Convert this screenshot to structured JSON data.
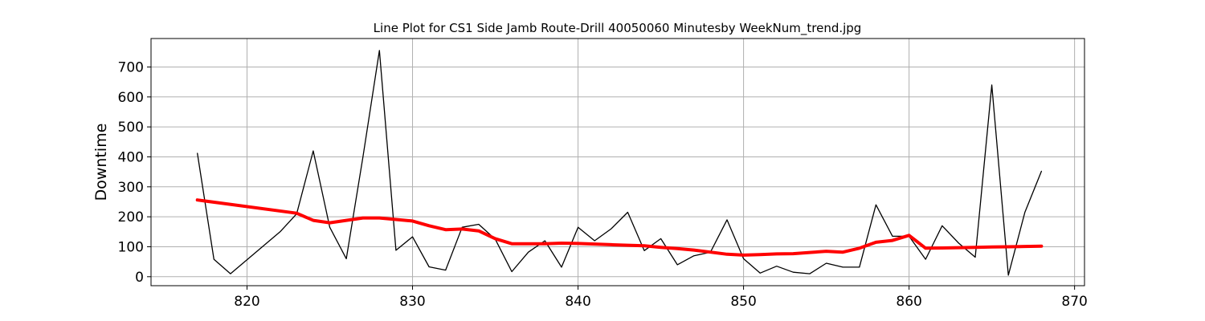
{
  "chart_data": {
    "type": "line",
    "title": "Line Plot for CS1 Side Jamb Route-Drill 40050060 Minutesby WeekNum_trend.jpg",
    "xlabel": "",
    "ylabel": "Downtime",
    "xlim": [
      814.2,
      870.6
    ],
    "ylim": [
      -30,
      795
    ],
    "xticks": [
      820,
      830,
      840,
      850,
      860,
      870
    ],
    "yticks": [
      0,
      100,
      200,
      300,
      400,
      500,
      600,
      700
    ],
    "grid": true,
    "series": [
      {
        "color": "#000000",
        "x": [
          817,
          818,
          819,
          822,
          823,
          824,
          825,
          826,
          827,
          828,
          829,
          830,
          831,
          832,
          833,
          834,
          835,
          836,
          837,
          838,
          839,
          840,
          841,
          842,
          843,
          844,
          845,
          846,
          847,
          848,
          849,
          850,
          851,
          852,
          853,
          854,
          855,
          856,
          857,
          858,
          859,
          860,
          861,
          862,
          863,
          864,
          865,
          866,
          867,
          868
        ],
        "y": [
          412,
          58,
          10,
          150,
          210,
          420,
          165,
          60,
          398,
          755,
          88,
          133,
          33,
          22,
          165,
          175,
          125,
          17,
          82,
          120,
          32,
          165,
          120,
          160,
          215,
          87,
          127,
          40,
          70,
          82,
          190,
          60,
          12,
          35,
          15,
          10,
          45,
          32,
          32,
          240,
          135,
          135,
          58,
          170,
          112,
          65,
          640,
          5,
          215,
          352
        ]
      },
      {
        "color": "#ff0000",
        "x": [
          817,
          823,
          824,
          825,
          826,
          827,
          828,
          829,
          830,
          831,
          832,
          833,
          834,
          835,
          836,
          837,
          838,
          839,
          840,
          841,
          842,
          843,
          844,
          845,
          846,
          847,
          848,
          849,
          850,
          851,
          852,
          853,
          854,
          855,
          856,
          857,
          858,
          859,
          860,
          861,
          862,
          863,
          864,
          865,
          866,
          867,
          868
        ],
        "y": [
          256,
          212,
          188,
          180,
          188,
          196,
          196,
          191,
          186,
          170,
          157,
          159,
          153,
          127,
          110,
          110,
          110,
          112,
          111,
          109,
          107,
          105,
          103,
          98,
          94,
          89,
          82,
          75,
          72,
          74,
          76,
          77,
          81,
          85,
          82,
          95,
          115,
          121,
          138,
          95,
          96,
          97,
          98,
          99,
          100,
          101,
          102
        ]
      }
    ]
  }
}
